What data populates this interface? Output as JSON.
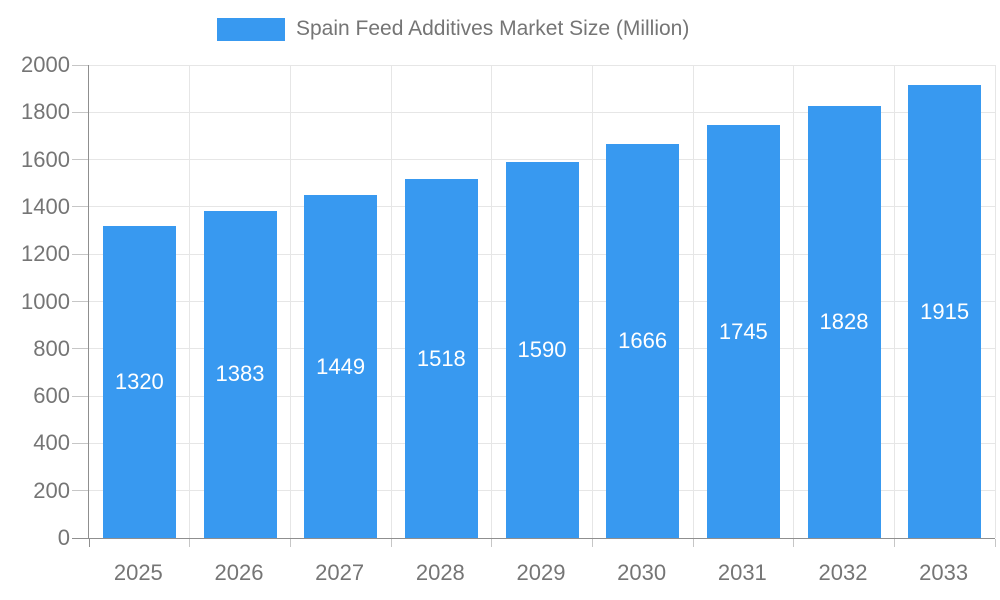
{
  "legend": {
    "label": "Spain Feed Additives Market Size (Million)"
  },
  "chart_data": {
    "type": "bar",
    "title": "Spain Feed Additives Market Size (Million)",
    "series_name": "Spain Feed Additives Market Size (Million)",
    "categories": [
      "2025",
      "2026",
      "2027",
      "2028",
      "2029",
      "2030",
      "2031",
      "2032",
      "2033"
    ],
    "values": [
      1320,
      1383,
      1449,
      1518,
      1590,
      1666,
      1745,
      1828,
      1915
    ],
    "xlabel": "",
    "ylabel": "",
    "ylim": [
      0,
      2000
    ],
    "ytick_step": 200,
    "ytick_labels": [
      "0",
      "200",
      "400",
      "600",
      "800",
      "1000",
      "1200",
      "1400",
      "1600",
      "1800",
      "2000"
    ],
    "grid": true,
    "legend_position": "top",
    "bar_label_position": "inside-center",
    "colors": {
      "bar": "#3899F0",
      "bar_label": "#ffffff",
      "axis_line": "#8f8f8f",
      "grid_line": "#e6e6e6",
      "tick": "#c6c6c6",
      "text": "#757575",
      "background": "#ffffff"
    }
  }
}
